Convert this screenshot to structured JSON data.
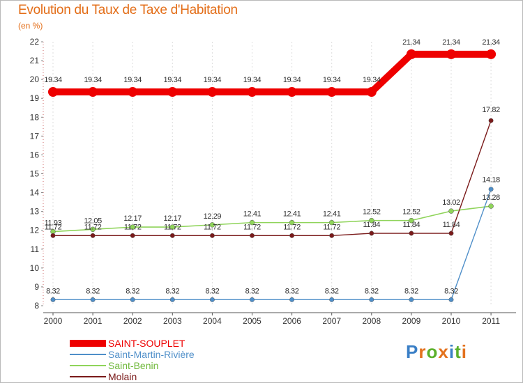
{
  "title": "Evolution du Taux de Taxe d'Habitation",
  "subtitle": "(en %)",
  "brand": {
    "letters": [
      "P",
      "r",
      "o",
      "x",
      "i",
      "t",
      "i"
    ],
    "colors": [
      "#3a7fc6",
      "#e3721e",
      "#5bb02b",
      "#e3721e",
      "#3a7fc6",
      "#5bb02b",
      "#e3721e"
    ]
  },
  "chart_data": {
    "type": "line",
    "title": "Evolution du Taux de Taxe d'Habitation",
    "ylabel": "(en %)",
    "xlabel": "",
    "x": [
      "2000",
      "2001",
      "2002",
      "2003",
      "2004",
      "2005",
      "2006",
      "2007",
      "2008",
      "2009",
      "2010",
      "2011"
    ],
    "ylim": [
      8,
      22
    ],
    "yticks": [
      "8",
      "9",
      "10",
      "11",
      "12",
      "13",
      "14",
      "15",
      "16",
      "17",
      "18",
      "19",
      "20",
      "21",
      "22"
    ],
    "legend_position": "bottom-left",
    "series": [
      {
        "name": "SAINT-SOUPLET",
        "color": "#ee0000",
        "values": [
          19.34,
          19.34,
          19.34,
          19.34,
          19.34,
          19.34,
          19.34,
          19.34,
          19.34,
          21.34,
          21.34,
          21.34
        ],
        "labels": [
          "19.34",
          "19.34",
          "19.34",
          "19.34",
          "19.34",
          "19.34",
          "19.34",
          "19.34",
          "19.34",
          "21.34",
          "21.34",
          "21.34"
        ]
      },
      {
        "name": "Saint-Martin-Rivière",
        "color": "#4f8fc9",
        "values": [
          8.32,
          8.32,
          8.32,
          8.32,
          8.32,
          8.32,
          8.32,
          8.32,
          8.32,
          8.32,
          8.32,
          14.18
        ],
        "labels": [
          "8.32",
          "8.32",
          "8.32",
          "8.32",
          "8.32",
          "8.32",
          "8.32",
          "8.32",
          "8.32",
          "8.32",
          "8.32",
          "14.18"
        ]
      },
      {
        "name": "Saint-Benin",
        "color": "#8fd45a",
        "values": [
          11.93,
          12.05,
          12.17,
          12.17,
          12.29,
          12.41,
          12.41,
          12.41,
          12.52,
          12.52,
          13.02,
          13.28
        ],
        "labels": [
          "11.93",
          "12.05",
          "12.17",
          "12.17",
          "12.29",
          "12.41",
          "12.41",
          "12.41",
          "12.52",
          "12.52",
          "13.02",
          "13.28"
        ]
      },
      {
        "name": "Molain",
        "color": "#7a1a1a",
        "values": [
          11.72,
          11.72,
          11.72,
          11.72,
          11.72,
          11.72,
          11.72,
          11.72,
          11.84,
          11.84,
          11.84,
          17.82
        ],
        "labels": [
          "11.72",
          "11.72",
          "11.72",
          "11.72",
          "11.72",
          "11.72",
          "11.72",
          "11.72",
          "11.84",
          "11.84",
          "11.84",
          "17.82"
        ]
      }
    ]
  }
}
